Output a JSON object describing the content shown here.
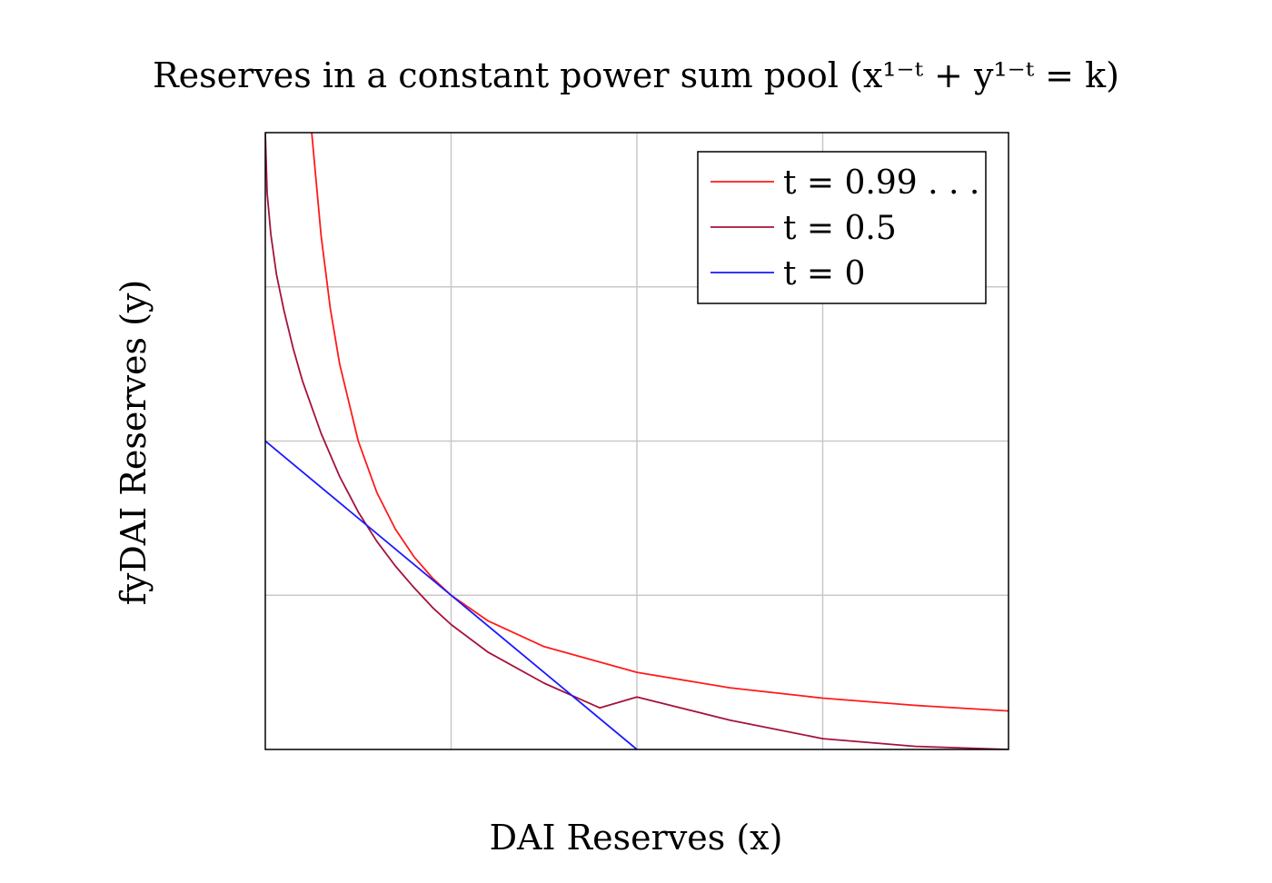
{
  "chart_data": {
    "type": "line",
    "title": "Reserves in a constant power sum pool (x¹⁻ᵗ + y¹⁻ᵗ = k)",
    "xlabel": "DAI Reserves (x)",
    "ylabel": "fyDAI Reserves (y)",
    "xlim": [
      0,
      4
    ],
    "ylim": [
      0,
      4
    ],
    "grid": true,
    "legend_position": "top-right",
    "series": [
      {
        "name": "t = 0.99 . . .",
        "color": "#ff1a1a",
        "x": [
          0.25,
          0.3,
          0.35,
          0.4,
          0.5,
          0.6,
          0.7,
          0.8,
          0.9,
          1.0,
          1.2,
          1.5,
          2.0,
          2.5,
          3.0,
          3.5,
          4.0
        ],
        "y": [
          4.0,
          3.333,
          2.857,
          2.5,
          2.0,
          1.667,
          1.429,
          1.25,
          1.111,
          1.0,
          0.833,
          0.667,
          0.5,
          0.4,
          0.333,
          0.286,
          0.25
        ]
      },
      {
        "name": "t = 0.5",
        "color": "#a5123a",
        "x": [
          0.0,
          0.01,
          0.03,
          0.06,
          0.1,
          0.15,
          0.2,
          0.3,
          0.4,
          0.5,
          0.6,
          0.7,
          0.8,
          0.9,
          1.0,
          1.2,
          1.5,
          1.8,
          2.0,
          2.5,
          3.0,
          3.5,
          4.0
        ],
        "y": [
          4.0,
          3.61,
          3.34,
          3.08,
          2.85,
          2.6,
          2.39,
          2.05,
          1.77,
          1.54,
          1.35,
          1.19,
          1.05,
          0.92,
          0.81,
          0.63,
          0.43,
          0.27,
          0.34,
          0.19,
          0.07,
          0.02,
          0.0
        ]
      },
      {
        "name": "t = 0",
        "color": "#1a1aff",
        "x": [
          0.0,
          2.0
        ],
        "y": [
          2.0,
          0.0
        ]
      }
    ]
  }
}
